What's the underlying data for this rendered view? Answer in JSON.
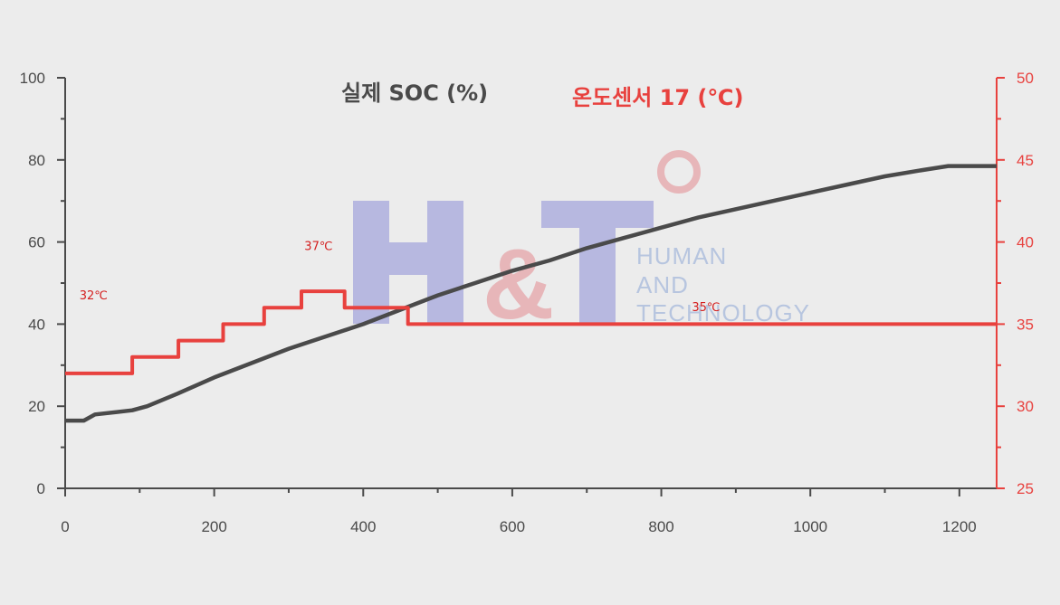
{
  "chart_data": {
    "type": "line",
    "title": "",
    "xlabel": "",
    "x_ticks": [
      "0",
      "200",
      "400",
      "600",
      "800",
      "1000",
      "1200"
    ],
    "xlim": [
      0,
      1250
    ],
    "y_left_ticks": [
      "0",
      "20",
      "40",
      "60",
      "80",
      "100"
    ],
    "ylim_left": [
      0,
      100
    ],
    "y_right_ticks": [
      "25",
      "30",
      "35",
      "40",
      "45",
      "50"
    ],
    "ylim_right": [
      25,
      50
    ],
    "grid": false,
    "series": [
      {
        "name": "실제 SOC (%)",
        "axis": "left",
        "color": "#4a4a4a",
        "points": [
          [
            0,
            16.5
          ],
          [
            25,
            16.5
          ],
          [
            40,
            18
          ],
          [
            90,
            19
          ],
          [
            110,
            20
          ],
          [
            150,
            23
          ],
          [
            200,
            27
          ],
          [
            250,
            30.5
          ],
          [
            300,
            34
          ],
          [
            350,
            37
          ],
          [
            400,
            40
          ],
          [
            450,
            43.5
          ],
          [
            500,
            47
          ],
          [
            550,
            50
          ],
          [
            600,
            53
          ],
          [
            650,
            55.5
          ],
          [
            700,
            58.5
          ],
          [
            750,
            61
          ],
          [
            800,
            63.5
          ],
          [
            850,
            66
          ],
          [
            900,
            68
          ],
          [
            950,
            70
          ],
          [
            1000,
            72
          ],
          [
            1050,
            74
          ],
          [
            1100,
            76
          ],
          [
            1150,
            77.5
          ],
          [
            1185,
            78.5
          ],
          [
            1250,
            78.5
          ]
        ]
      },
      {
        "name": "온도센서 17 (℃)",
        "axis": "right",
        "color": "#e8413e",
        "step": true,
        "points": [
          [
            0,
            32
          ],
          [
            90,
            32
          ],
          [
            90,
            33
          ],
          [
            152,
            33
          ],
          [
            152,
            34
          ],
          [
            212,
            34
          ],
          [
            212,
            35
          ],
          [
            267,
            35
          ],
          [
            267,
            36
          ],
          [
            317,
            36
          ],
          [
            317,
            37
          ],
          [
            375,
            37
          ],
          [
            375,
            36
          ],
          [
            460,
            36
          ],
          [
            460,
            35
          ],
          [
            1250,
            35
          ]
        ]
      }
    ],
    "annotations": [
      {
        "text": "32℃",
        "x": 38,
        "y": 36.5
      },
      {
        "text": "37℃",
        "x": 340,
        "y": 39.5
      },
      {
        "text": "35℃",
        "x": 860,
        "y": 35.8
      }
    ],
    "legend": "top-center"
  },
  "watermark": {
    "logo": "H&T",
    "lines": [
      "HUMAN",
      "AND",
      "TECHNOLOGY"
    ]
  }
}
